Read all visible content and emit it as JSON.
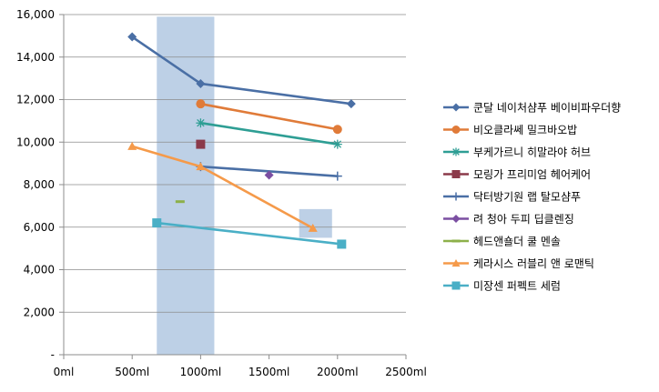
{
  "chart_data": {
    "type": "line",
    "title": "",
    "xlabel": "",
    "ylabel": "",
    "xlim": [
      0,
      2500
    ],
    "ylim": [
      0,
      16000
    ],
    "grid": true,
    "legend_position": "right",
    "x_tick_labels": [
      "0ml",
      "500ml",
      "1000ml",
      "1500ml",
      "2000ml",
      "2500ml"
    ],
    "y_tick_labels": [
      "-",
      "2,000",
      "4,000",
      "6,000",
      "8,000",
      "10,000",
      "12,000",
      "14,000",
      "16,000"
    ],
    "highlights": [
      {
        "x_range": [
          680,
          1100
        ],
        "y_range": [
          0,
          15900
        ],
        "color": "#b9cde5"
      },
      {
        "x_range": [
          1720,
          1960
        ],
        "y_range": [
          5500,
          6850
        ],
        "color": "#b9cde5"
      }
    ],
    "series": [
      {
        "name": "쿤달 네이처샴푸 베이비파우더향",
        "color": "#4a6fa5",
        "marker": "diamond",
        "points": [
          [
            500,
            14950
          ],
          [
            1000,
            12750
          ],
          [
            2100,
            11800
          ]
        ]
      },
      {
        "name": "비오클라쎄 밀크바오밥",
        "color": "#e07b39",
        "marker": "circle",
        "points": [
          [
            1000,
            11800
          ],
          [
            2000,
            10600
          ]
        ]
      },
      {
        "name": "부케가르니 히말라야 허브",
        "color": "#2e9e94",
        "marker": "star",
        "points": [
          [
            1000,
            10900
          ],
          [
            2000,
            9900
          ]
        ]
      },
      {
        "name": "모링가 프리미엄 헤어케어",
        "color": "#8b3a4a",
        "marker": "square",
        "points": [
          [
            1000,
            9900
          ]
        ]
      },
      {
        "name": "닥터방기원 랩 탈모샴푸",
        "color": "#4a6fa5",
        "marker": "plus",
        "points": [
          [
            1000,
            8850
          ],
          [
            2000,
            8400
          ]
        ]
      },
      {
        "name": "려 청아 두피 딥클렌징",
        "color": "#7b4fa2",
        "marker": "diamond",
        "points": [
          [
            1500,
            8450
          ]
        ]
      },
      {
        "name": "헤드앤숄더 쿨 멘솔",
        "color": "#8db04a",
        "marker": "dash",
        "points": [
          [
            850,
            7200
          ]
        ]
      },
      {
        "name": "케라시스 러블리 앤 로맨틱",
        "color": "#f59a4a",
        "marker": "triangle",
        "points": [
          [
            500,
            9800
          ],
          [
            1000,
            8850
          ],
          [
            1820,
            5950
          ]
        ]
      },
      {
        "name": "미장센 퍼펙트 세럼",
        "color": "#4aafc6",
        "marker": "square",
        "points": [
          [
            680,
            6200
          ],
          [
            2030,
            5200
          ]
        ]
      }
    ]
  }
}
